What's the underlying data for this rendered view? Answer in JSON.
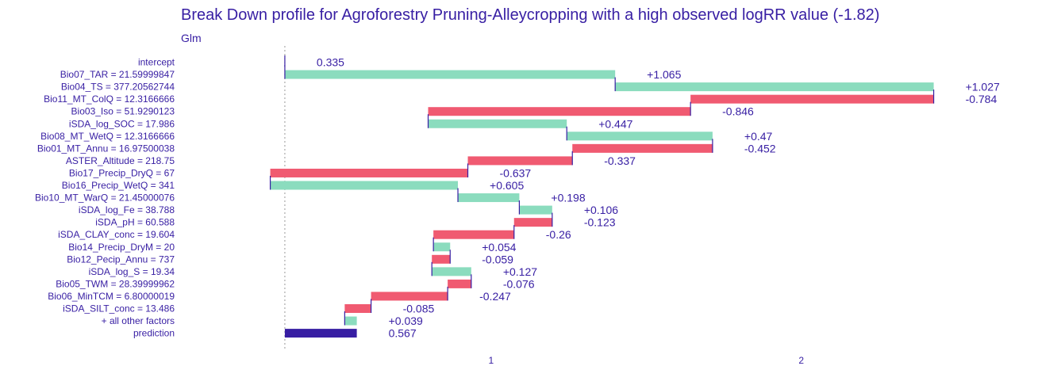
{
  "chart_data": {
    "type": "bar",
    "title": "Break Down profile for Agroforestry Pruning-Alleycropping with a high observed logRR value (-1.82)",
    "subtitle": "Glm",
    "x_ticks": [
      "1",
      "2"
    ],
    "xlim": [
      0.0,
      2.73
    ],
    "baseline": 0.335,
    "grid": false,
    "colors": {
      "positive": "#8bdcbe",
      "negative": "#f05a71",
      "prediction": "#371ea3",
      "connector": "#371ea3",
      "text": "#371ea3",
      "baseline_line": "#999999"
    },
    "rows": [
      {
        "label": "intercept",
        "value": 0.335,
        "cumulative": 0.335,
        "value_label": "0.335",
        "kind": "intercept"
      },
      {
        "label": "Bio07_TAR = 21.59999847",
        "value": 1.065,
        "cumulative": 1.4,
        "value_label": "+1.065",
        "kind": "positive"
      },
      {
        "label": "Bio04_TS = 377.20562744",
        "value": 1.027,
        "cumulative": 2.427,
        "value_label": "+1.027",
        "kind": "positive"
      },
      {
        "label": "Bio11_MT_ColQ = 12.3166666",
        "value": -0.784,
        "cumulative": 1.643,
        "value_label": "-0.784",
        "kind": "negative"
      },
      {
        "label": "Bio03_Iso = 51.9290123",
        "value": -0.846,
        "cumulative": 0.797,
        "value_label": "-0.846",
        "kind": "negative"
      },
      {
        "label": "iSDA_log_SOC = 17.986",
        "value": 0.447,
        "cumulative": 1.244,
        "value_label": "+0.447",
        "kind": "positive"
      },
      {
        "label": "Bio08_MT_WetQ = 12.3166666",
        "value": 0.47,
        "cumulative": 1.714,
        "value_label": "+0.47",
        "kind": "positive"
      },
      {
        "label": "Bio01_MT_Annu = 16.97500038",
        "value": -0.452,
        "cumulative": 1.262,
        "value_label": "-0.452",
        "kind": "negative"
      },
      {
        "label": "ASTER_Altitude = 218.75",
        "value": -0.337,
        "cumulative": 0.925,
        "value_label": "-0.337",
        "kind": "negative"
      },
      {
        "label": "Bio17_Precip_DryQ = 67",
        "value": -0.637,
        "cumulative": 0.288,
        "value_label": "-0.637",
        "kind": "negative"
      },
      {
        "label": "Bio16_Precip_WetQ = 341",
        "value": 0.605,
        "cumulative": 0.893,
        "value_label": "+0.605",
        "kind": "positive"
      },
      {
        "label": "Bio10_MT_WarQ = 21.45000076",
        "value": 0.198,
        "cumulative": 1.091,
        "value_label": "+0.198",
        "kind": "positive"
      },
      {
        "label": "iSDA_log_Fe = 38.788",
        "value": 0.106,
        "cumulative": 1.197,
        "value_label": "+0.106",
        "kind": "positive"
      },
      {
        "label": "iSDA_pH = 60.588",
        "value": -0.123,
        "cumulative": 1.074,
        "value_label": "-0.123",
        "kind": "negative"
      },
      {
        "label": "iSDA_CLAY_conc = 19.604",
        "value": -0.26,
        "cumulative": 0.814,
        "value_label": "-0.26",
        "kind": "negative"
      },
      {
        "label": "Bio14_Precip_DryM = 20",
        "value": 0.054,
        "cumulative": 0.868,
        "value_label": "+0.054",
        "kind": "positive"
      },
      {
        "label": "Bio12_Pecip_Annu = 737",
        "value": -0.059,
        "cumulative": 0.809,
        "value_label": "-0.059",
        "kind": "negative"
      },
      {
        "label": "iSDA_log_S = 19.34",
        "value": 0.127,
        "cumulative": 0.936,
        "value_label": "+0.127",
        "kind": "positive"
      },
      {
        "label": "Bio05_TWM = 28.39999962",
        "value": -0.076,
        "cumulative": 0.86,
        "value_label": "-0.076",
        "kind": "negative"
      },
      {
        "label": "Bio06_MinTCM = 6.80000019",
        "value": -0.247,
        "cumulative": 0.613,
        "value_label": "-0.247",
        "kind": "negative"
      },
      {
        "label": "iSDA_SILT_conc = 13.486",
        "value": -0.085,
        "cumulative": 0.528,
        "value_label": "-0.085",
        "kind": "negative"
      },
      {
        "label": "+ all other factors",
        "value": 0.039,
        "cumulative": 0.567,
        "value_label": "+0.039",
        "kind": "positive"
      },
      {
        "label": "prediction",
        "value": 0.567,
        "cumulative": 0.567,
        "value_label": "0.567",
        "kind": "prediction"
      }
    ]
  }
}
